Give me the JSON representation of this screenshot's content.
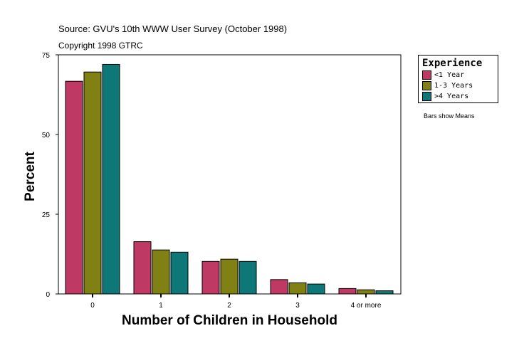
{
  "chart_data": {
    "type": "bar",
    "annotations": [
      "Source: GVU's 10th WWW User Survey (October 1998)",
      "Copyright 1998 GTRC"
    ],
    "xlabel": "Number of Children in Household",
    "ylabel": "Percent",
    "categories": [
      "0",
      "1",
      "2",
      "3",
      "4 or more"
    ],
    "ylim": [
      0,
      75
    ],
    "yticks": [
      "0",
      "25",
      "50",
      "75"
    ],
    "grid": false,
    "legend_title": "Experience",
    "legend_placement": "right",
    "note": "Bars show Means",
    "series": [
      {
        "name": "<1 Year",
        "color": "#BE3A64",
        "values": [
          66.7,
          16.4,
          10.2,
          4.5,
          1.7
        ]
      },
      {
        "name": "1-3 Years",
        "color": "#808014",
        "values": [
          69.6,
          13.8,
          10.9,
          3.5,
          1.3
        ]
      },
      {
        "name": "&gt;4 Years",
        "color": "#0E7878",
        "values": [
          72.0,
          13.1,
          10.2,
          3.1,
          1.0
        ]
      }
    ]
  }
}
